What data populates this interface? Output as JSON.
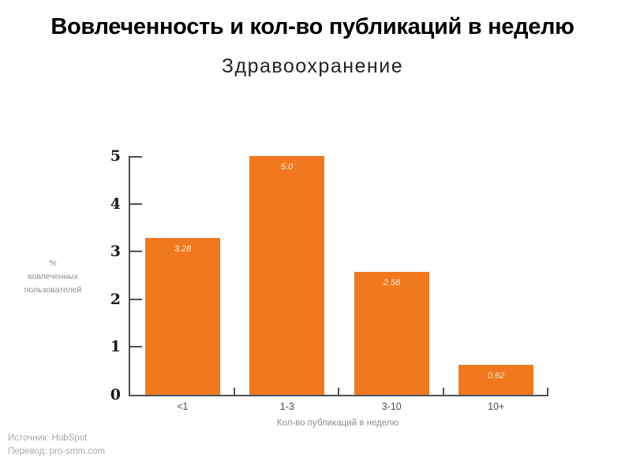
{
  "slide": {
    "title": "Вовлеченность и кол-во публикаций в неделю",
    "subtitle": "Здравоохранение",
    "source_line1": "Источник: HubSpot",
    "source_line2": "Перевод: pro-smm.com"
  },
  "chart_data": {
    "type": "bar",
    "categories": [
      "<1",
      "1-3",
      "3-10",
      "10+"
    ],
    "values": [
      3.28,
      5.0,
      2.58,
      0.62
    ],
    "value_labels": [
      "3.28",
      "5.0",
      "2.58",
      "0.62"
    ],
    "title": "Вовлеченность и кол-во публикаций в неделю",
    "subtitle": "Здравоохранение",
    "xlabel": "Кол-во публикаций в неделю",
    "ylabel": "% вовлеченных пользователей",
    "ylabel_lines": [
      "%",
      "вовлеченных",
      "пользователей"
    ],
    "ylim": [
      0,
      5
    ],
    "yticks": [
      0,
      1,
      2,
      3,
      4,
      5
    ],
    "grid": false,
    "legend": "none",
    "colors": {
      "bar": "#F0791F",
      "bar_label": "#FAEDD2",
      "axis": "#4A5158",
      "y_tick_label": "#1A1A1A",
      "category_label": "#4A4A4A",
      "axis_title": "#8E8E8E",
      "source": "#A9A9A9"
    }
  }
}
